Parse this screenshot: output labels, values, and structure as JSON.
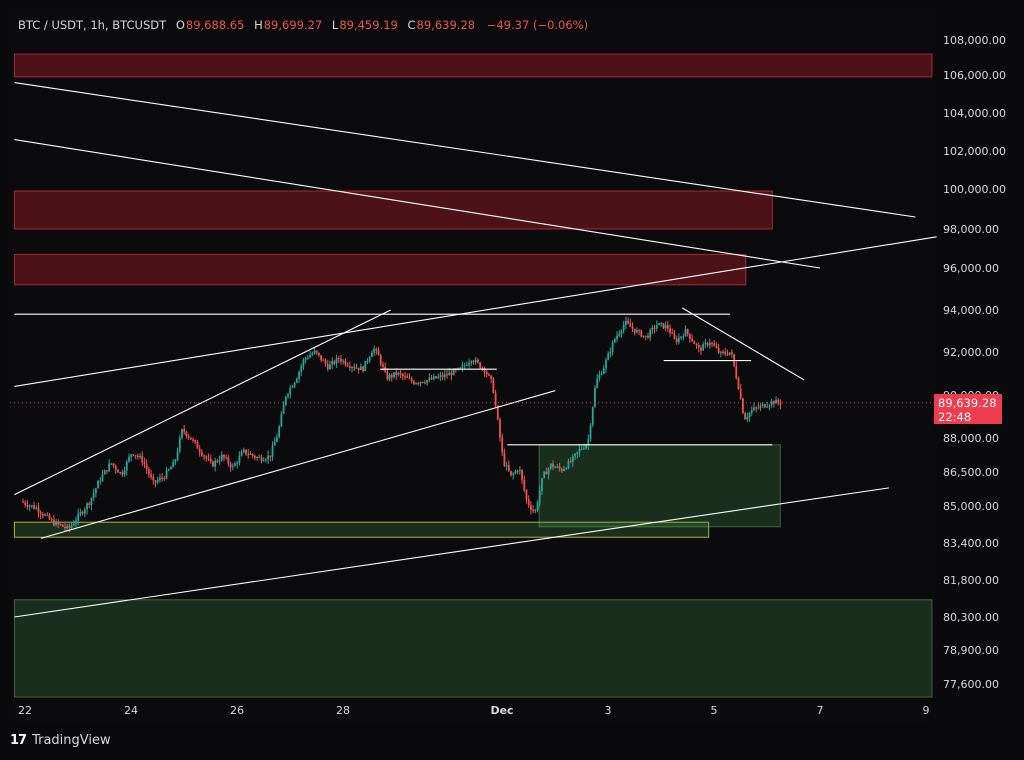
{
  "header": {
    "symbol": "BTC / USDT, 1h, BTCUSDT",
    "o_key": "O",
    "o_val": "89,688.65",
    "h_key": "H",
    "h_val": "89,699.27",
    "l_key": "L",
    "l_val": "89,459.19",
    "c_key": "C",
    "c_val": "89,639.28",
    "change": "−49.37 (−0.06%)"
  },
  "last_price": {
    "price": "89,639.28",
    "countdown": "22:48",
    "value": 89639.28
  },
  "brand": {
    "name": "TradingView",
    "logo": "17"
  },
  "colors": {
    "up": "#26a69a",
    "down": "#ef5350",
    "bear_zone": "#ff3040",
    "bull_zone": "#4caf50",
    "lines": "#ffffff"
  },
  "chart_data": {
    "type": "candlestick",
    "timeframe": "1h",
    "y_ticks": [
      108000,
      106000,
      104000,
      102000,
      100000,
      98000,
      96000,
      94000,
      92000,
      90000,
      88000,
      86500,
      85000,
      83400,
      81800,
      80300,
      78900,
      77600
    ],
    "y_tick_labels": [
      "108,000.00",
      "106,000.00",
      "104,000.00",
      "102,000.00",
      "100,000.00",
      "98,000.00",
      "96,000.00",
      "94,000.00",
      "92,000.00",
      "90,000.00",
      "88,000.00",
      "86,500.00",
      "85,000.00",
      "83,400.00",
      "81,800.00",
      "80,300.00",
      "78,900.00",
      "77,600.00"
    ],
    "x_ticks": [
      {
        "label": "22",
        "day": 0
      },
      {
        "label": "24",
        "day": 2
      },
      {
        "label": "26",
        "day": 4
      },
      {
        "label": "28",
        "day": 6
      },
      {
        "label": "Dec",
        "day": 9,
        "bold": true
      },
      {
        "label": "3",
        "day": 11
      },
      {
        "label": "5",
        "day": 13
      },
      {
        "label": "7",
        "day": 15
      },
      {
        "label": "9",
        "day": 17
      }
    ],
    "price_path": [
      [
        0,
        85200
      ],
      [
        0.3,
        84900
      ],
      [
        0.6,
        84300
      ],
      [
        0.9,
        84000
      ],
      [
        1.1,
        84600
      ],
      [
        1.3,
        85200
      ],
      [
        1.5,
        86200
      ],
      [
        1.7,
        86900
      ],
      [
        1.9,
        86400
      ],
      [
        2.1,
        87400
      ],
      [
        2.3,
        87000
      ],
      [
        2.5,
        86000
      ],
      [
        2.7,
        86300
      ],
      [
        2.9,
        86900
      ],
      [
        3.05,
        88400
      ],
      [
        3.2,
        88000
      ],
      [
        3.4,
        87400
      ],
      [
        3.6,
        86800
      ],
      [
        3.8,
        87200
      ],
      [
        4.0,
        86700
      ],
      [
        4.2,
        87400
      ],
      [
        4.5,
        87100
      ],
      [
        4.7,
        87200
      ],
      [
        4.85,
        88200
      ],
      [
        5.0,
        90000
      ],
      [
        5.2,
        90800
      ],
      [
        5.35,
        91700
      ],
      [
        5.55,
        92000
      ],
      [
        5.8,
        91300
      ],
      [
        6.0,
        91700
      ],
      [
        6.2,
        91400
      ],
      [
        6.45,
        91200
      ],
      [
        6.65,
        92200
      ],
      [
        6.75,
        91800
      ],
      [
        6.9,
        90800
      ],
      [
        7.1,
        91000
      ],
      [
        7.4,
        90600
      ],
      [
        7.7,
        90700
      ],
      [
        8.0,
        90900
      ],
      [
        8.3,
        91200
      ],
      [
        8.5,
        91700
      ],
      [
        8.75,
        91200
      ],
      [
        8.9,
        90500
      ],
      [
        9.1,
        87000
      ],
      [
        9.25,
        86300
      ],
      [
        9.4,
        86700
      ],
      [
        9.55,
        85200
      ],
      [
        9.7,
        84700
      ],
      [
        9.85,
        86300
      ],
      [
        10.0,
        86800
      ],
      [
        10.2,
        86600
      ],
      [
        10.4,
        87000
      ],
      [
        10.55,
        87500
      ],
      [
        10.7,
        87800
      ],
      [
        10.85,
        90600
      ],
      [
        11.0,
        91300
      ],
      [
        11.2,
        92600
      ],
      [
        11.4,
        93400
      ],
      [
        11.6,
        93000
      ],
      [
        11.8,
        92700
      ],
      [
        12.0,
        93300
      ],
      [
        12.2,
        93200
      ],
      [
        12.35,
        92500
      ],
      [
        12.55,
        93000
      ],
      [
        12.8,
        92100
      ],
      [
        13.0,
        92500
      ],
      [
        13.2,
        91900
      ],
      [
        13.4,
        92000
      ],
      [
        13.55,
        90300
      ],
      [
        13.65,
        88900
      ],
      [
        13.8,
        89300
      ],
      [
        14.0,
        89500
      ],
      [
        14.2,
        89700
      ],
      [
        14.3,
        89639
      ]
    ],
    "zones": [
      {
        "kind": "supply",
        "from_day": -0.2,
        "to_day": 17.2,
        "top": 107200,
        "bottom": 105900
      },
      {
        "kind": "supply",
        "from_day": -0.2,
        "to_day": 14.1,
        "top": 99900,
        "bottom": 98000
      },
      {
        "kind": "supply",
        "from_day": -0.2,
        "to_day": 13.6,
        "top": 96700,
        "bottom": 95200
      },
      {
        "kind": "demand",
        "from_day": -0.2,
        "to_day": 12.9,
        "top": 84300,
        "bottom": 83650
      },
      {
        "kind": "demand",
        "from_day": 9.7,
        "to_day": 14.25,
        "top": 87700,
        "bottom": 84100
      },
      {
        "kind": "demand",
        "from_day": -0.2,
        "to_day": 17.2,
        "top": 81000,
        "bottom": 77100
      }
    ],
    "lines": [
      {
        "from": [
          -0.2,
          105600
        ],
        "to": [
          16.8,
          98600
        ]
      },
      {
        "from": [
          -0.2,
          102600
        ],
        "to": [
          15.0,
          96000
        ]
      },
      {
        "from": [
          -0.2,
          90400
        ],
        "to": [
          17.2,
          97600
        ]
      },
      {
        "from": [
          -0.2,
          80300
        ],
        "to": [
          16.3,
          85800
        ]
      },
      {
        "from": [
          -0.2,
          85500
        ],
        "to": [
          6.9,
          94000
        ]
      },
      {
        "from": [
          0.3,
          83600
        ],
        "to": [
          10.0,
          90200
        ]
      },
      {
        "from": [
          -0.2,
          93800
        ],
        "to": [
          13.3,
          93800
        ]
      },
      {
        "from": [
          6.7,
          91200
        ],
        "to": [
          8.9,
          91200
        ]
      },
      {
        "from": [
          9.1,
          87700
        ],
        "to": [
          14.1,
          87700
        ]
      },
      {
        "from": [
          12.05,
          91600
        ],
        "to": [
          13.7,
          91600
        ]
      },
      {
        "from": [
          12.4,
          94100
        ],
        "to": [
          14.7,
          90700
        ]
      }
    ]
  }
}
